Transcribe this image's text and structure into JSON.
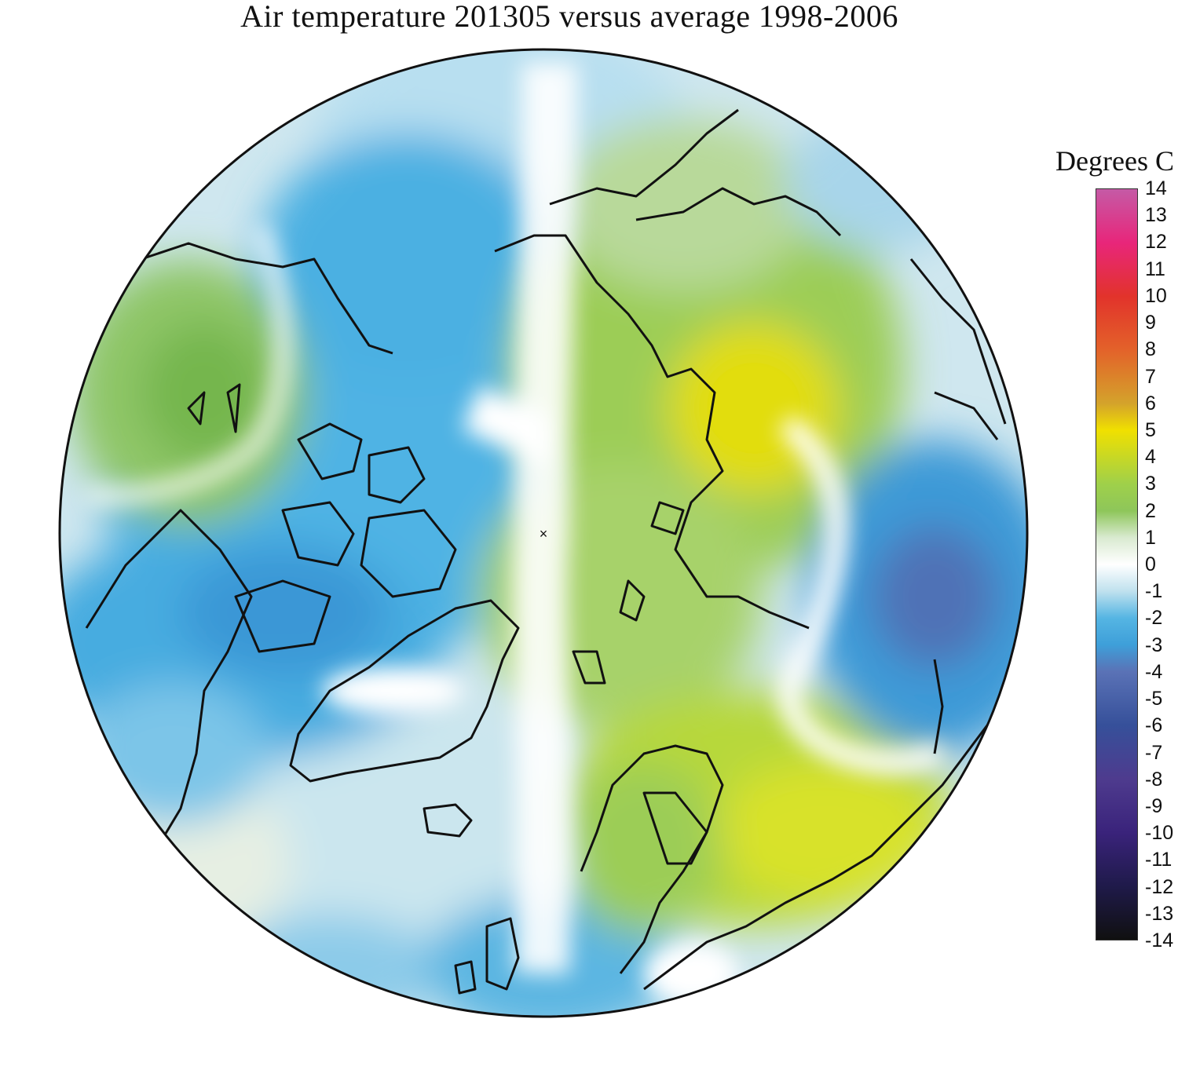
{
  "title": "Air temperature 201305 versus average 1998-2006",
  "legend": {
    "title": "Degrees C",
    "ticks": [
      "14",
      "13",
      "12",
      "11",
      "10",
      "9",
      "8",
      "7",
      "6",
      "5",
      "4",
      "3",
      "2",
      "1",
      "0",
      "-1",
      "-2",
      "-3",
      "-4",
      "-5",
      "-6",
      "-7",
      "-8",
      "-9",
      "-10",
      "-11",
      "-12",
      "-13",
      "-14"
    ],
    "stops": [
      {
        "value": 14,
        "color": "#c55aa6"
      },
      {
        "value": 12,
        "color": "#e8267a"
      },
      {
        "value": 10,
        "color": "#e2332b"
      },
      {
        "value": 8,
        "color": "#e3622a"
      },
      {
        "value": 6,
        "color": "#d4a32b"
      },
      {
        "value": 5,
        "color": "#f0e000"
      },
      {
        "value": 3,
        "color": "#9fd04a"
      },
      {
        "value": 2,
        "color": "#8ec65a"
      },
      {
        "value": 1,
        "color": "#d9ead0"
      },
      {
        "value": 0,
        "color": "#ffffff"
      },
      {
        "value": -1,
        "color": "#bfe1ee"
      },
      {
        "value": -2,
        "color": "#55b5e3"
      },
      {
        "value": -3,
        "color": "#3e9fd9"
      },
      {
        "value": -4,
        "color": "#5a72b6"
      },
      {
        "value": -6,
        "color": "#36509a"
      },
      {
        "value": -8,
        "color": "#4e3b8e"
      },
      {
        "value": -10,
        "color": "#3a237b"
      },
      {
        "value": -12,
        "color": "#1f1a4a"
      },
      {
        "value": -14,
        "color": "#101010"
      }
    ]
  },
  "map": {
    "projection": "north-polar-stereographic",
    "colors": {
      "land_outline": "#111111",
      "disk_outline": "#111111"
    }
  }
}
